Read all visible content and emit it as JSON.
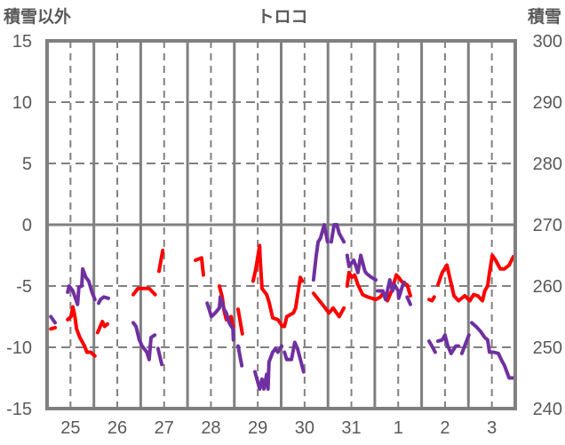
{
  "chart_data": {
    "type": "line",
    "title": "トロコ",
    "ylabel_left": "積雪以外",
    "ylabel_right": "積雪",
    "xlabel": "",
    "x_unit": "days from start of 25th",
    "xlim": [
      0,
      10
    ],
    "categories": [
      "25",
      "26",
      "27",
      "28",
      "29",
      "30",
      "31",
      "1",
      "2",
      "3"
    ],
    "ylim_left": [
      -15,
      15
    ],
    "yticks_left": [
      15,
      10,
      5,
      0,
      -5,
      -10,
      -15
    ],
    "ylim_right": [
      240,
      300
    ],
    "yticks_right": [
      300,
      290,
      280,
      270,
      260,
      250,
      240
    ],
    "grid": true,
    "legend": "none",
    "colors": {
      "other": "#FF0000",
      "snow": "#7030A0",
      "grid": "#808080",
      "text": "#595959"
    },
    "series": [
      {
        "name": "積雪以外",
        "axis": "left",
        "color": "#FF0000",
        "segments": [
          [
            [
              0.08,
              -8.5
            ],
            [
              0.17,
              -8.4
            ]
          ],
          [
            [
              0.44,
              -7.75
            ],
            [
              0.51,
              -7.5
            ],
            [
              0.55,
              -6.7
            ],
            [
              0.59,
              -7.4
            ],
            [
              0.63,
              -8.5
            ],
            [
              0.7,
              -9.2
            ],
            [
              0.8,
              -9.9
            ],
            [
              0.85,
              -10.4
            ],
            [
              0.93,
              -10.4
            ],
            [
              1.02,
              -10.7
            ]
          ],
          [
            [
              1.08,
              -8.8
            ],
            [
              1.18,
              -7.9
            ],
            [
              1.23,
              -8.3
            ],
            [
              1.29,
              -8.1
            ]
          ],
          [
            [
              1.84,
              -5.7
            ],
            [
              1.94,
              -5.2
            ],
            [
              2.09,
              -5.2
            ],
            [
              2.18,
              -5.2
            ],
            [
              2.31,
              -5.7
            ]
          ],
          [
            [
              2.39,
              -3.8
            ],
            [
              2.47,
              -2.1
            ]
          ],
          [
            [
              3.17,
              -2.9
            ],
            [
              3.3,
              -2.7
            ],
            [
              3.34,
              -4.1
            ]
          ],
          [
            [
              3.68,
              -5.0
            ],
            [
              3.74,
              -5.9
            ],
            [
              3.78,
              -7.0
            ],
            [
              3.83,
              -7.75
            ],
            [
              3.93,
              -7.5
            ],
            [
              3.97,
              -8.3
            ],
            [
              3.98,
              -8.3
            ]
          ],
          [
            [
              4.08,
              -6.9
            ],
            [
              4.17,
              -8.9
            ]
          ],
          [
            [
              4.4,
              -4.6
            ],
            [
              4.46,
              -3.6
            ],
            [
              4.54,
              -1.7
            ],
            [
              4.55,
              -2.7
            ],
            [
              4.59,
              -5.2
            ],
            [
              4.69,
              -5.7
            ],
            [
              4.74,
              -6.3
            ],
            [
              4.82,
              -7.6
            ],
            [
              4.93,
              -7.75
            ],
            [
              5.03,
              -8.3
            ],
            [
              5.07,
              -8.3
            ],
            [
              5.12,
              -7.5
            ],
            [
              5.26,
              -7.2
            ],
            [
              5.31,
              -6.8
            ],
            [
              5.41,
              -4.3
            ],
            [
              5.45,
              -4.6
            ]
          ],
          [
            [
              5.69,
              -5.6
            ],
            [
              5.88,
              -6.5
            ],
            [
              6.02,
              -7.2
            ],
            [
              6.11,
              -6.8
            ],
            [
              6.24,
              -7.5
            ],
            [
              6.34,
              -6.8
            ]
          ],
          [
            [
              6.41,
              -5.0
            ],
            [
              6.45,
              -3.9
            ],
            [
              6.51,
              -4.3
            ],
            [
              6.57,
              -4.1
            ],
            [
              6.64,
              -4.9
            ],
            [
              6.74,
              -5.7
            ],
            [
              6.85,
              -5.9
            ],
            [
              7.02,
              -6.1
            ],
            [
              7.12,
              -5.9
            ],
            [
              7.17,
              -5.6
            ],
            [
              7.27,
              -6.2
            ],
            [
              7.36,
              -5.4
            ],
            [
              7.46,
              -4.1
            ],
            [
              7.51,
              -4.3
            ],
            [
              7.59,
              -4.7
            ],
            [
              7.69,
              -4.9
            ],
            [
              7.76,
              -5.8
            ]
          ],
          [
            [
              8.16,
              -6.1
            ],
            [
              8.22,
              -6.2
            ],
            [
              8.27,
              -5.9
            ]
          ],
          [
            [
              8.35,
              -4.9
            ],
            [
              8.44,
              -3.9
            ],
            [
              8.54,
              -3.3
            ],
            [
              8.6,
              -4.3
            ],
            [
              8.69,
              -5.8
            ],
            [
              8.79,
              -6.2
            ],
            [
              8.92,
              -5.8
            ],
            [
              9.03,
              -6.2
            ],
            [
              9.11,
              -5.7
            ],
            [
              9.2,
              -5.8
            ],
            [
              9.3,
              -6.2
            ],
            [
              9.35,
              -5.4
            ],
            [
              9.41,
              -5.0
            ],
            [
              9.45,
              -3.9
            ],
            [
              9.51,
              -2.5
            ],
            [
              9.58,
              -2.9
            ],
            [
              9.68,
              -3.6
            ],
            [
              9.77,
              -3.6
            ],
            [
              9.87,
              -3.3
            ],
            [
              9.96,
              -2.6
            ]
          ]
        ]
      },
      {
        "name": "積雪",
        "axis": "right",
        "color": "#7030A0",
        "segments": [
          [
            [
              0.08,
              255
            ],
            [
              0.17,
              254
            ]
          ],
          [
            [
              0.44,
              259
            ],
            [
              0.47,
              260
            ],
            [
              0.55,
              259.2
            ],
            [
              0.65,
              257
            ],
            [
              0.68,
              259.8
            ],
            [
              0.74,
              260
            ],
            [
              0.76,
              262.8
            ],
            [
              0.83,
              261.4
            ],
            [
              0.89,
              260.8
            ],
            [
              0.95,
              259.2
            ],
            [
              1.02,
              257.8
            ]
          ],
          [
            [
              1.1,
              257.2
            ],
            [
              1.14,
              257.8
            ],
            [
              1.21,
              258.2
            ],
            [
              1.31,
              258
            ]
          ],
          [
            [
              1.84,
              254
            ],
            [
              1.9,
              253.4
            ],
            [
              1.97,
              251.2
            ],
            [
              2.03,
              250.2
            ],
            [
              2.13,
              249.2
            ],
            [
              2.18,
              248
            ],
            [
              2.22,
              251.6
            ],
            [
              2.3,
              252
            ]
          ],
          [
            [
              2.37,
              249.8
            ],
            [
              2.45,
              247.2
            ]
          ],
          [
            [
              3.42,
              257.2
            ],
            [
              3.51,
              255
            ],
            [
              3.59,
              255.6
            ],
            [
              3.68,
              256.4
            ],
            [
              3.7,
              258.2
            ],
            [
              3.78,
              256.2
            ],
            [
              3.83,
              255.6
            ],
            [
              3.89,
              254
            ],
            [
              3.97,
              253
            ],
            [
              3.98,
              251.2
            ]
          ],
          [
            [
              4.08,
              250.2
            ],
            [
              4.16,
              247
            ]
          ],
          [
            [
              4.44,
              246
            ],
            [
              4.54,
              243.2
            ],
            [
              4.59,
              244.8
            ],
            [
              4.63,
              243.2
            ],
            [
              4.69,
              245.6
            ],
            [
              4.72,
              243.2
            ],
            [
              4.74,
              247.6
            ],
            [
              4.82,
              249.2
            ],
            [
              4.88,
              249.8
            ],
            [
              4.93,
              249.2
            ],
            [
              5.01,
              250.2
            ]
          ],
          [
            [
              5.07,
              249.2
            ],
            [
              5.12,
              248
            ],
            [
              5.22,
              248
            ],
            [
              5.29,
              250.8
            ],
            [
              5.35,
              249.8
            ],
            [
              5.48,
              246
            ]
          ],
          [
            [
              5.69,
              261
            ],
            [
              5.75,
              265
            ],
            [
              5.79,
              267.2
            ],
            [
              5.84,
              267.8
            ],
            [
              5.92,
              270
            ],
            [
              5.99,
              267.2
            ]
          ],
          [
            [
              6.07,
              267.2
            ],
            [
              6.13,
              270
            ],
            [
              6.19,
              270
            ],
            [
              6.24,
              268.6
            ],
            [
              6.34,
              267.2
            ]
          ],
          [
            [
              6.41,
              265
            ],
            [
              6.45,
              263.2
            ],
            [
              6.55,
              264.2
            ],
            [
              6.6,
              263.2
            ],
            [
              6.64,
              262.2
            ],
            [
              6.7,
              265
            ],
            [
              6.79,
              262.4
            ],
            [
              6.83,
              262
            ],
            [
              6.93,
              261.4
            ],
            [
              7.02,
              261
            ]
          ],
          [
            [
              7.06,
              259.2
            ],
            [
              7.17,
              259.2
            ],
            [
              7.23,
              257.8
            ],
            [
              7.32,
              261
            ],
            [
              7.38,
              259.2
            ],
            [
              7.42,
              260.2
            ],
            [
              7.5,
              259.2
            ],
            [
              7.51,
              258
            ],
            [
              7.59,
              260
            ],
            [
              7.63,
              260.6
            ]
          ],
          [
            [
              7.69,
              258.2
            ],
            [
              7.76,
              257
            ]
          ],
          [
            [
              8.16,
              251
            ],
            [
              8.22,
              250.2
            ],
            [
              8.29,
              249.2
            ]
          ],
          [
            [
              8.35,
              251
            ],
            [
              8.44,
              251.2
            ],
            [
              8.5,
              252
            ],
            [
              8.56,
              250.2
            ],
            [
              8.63,
              249
            ],
            [
              8.73,
              250.2
            ],
            [
              8.79,
              250.2
            ]
          ],
          [
            [
              8.86,
              249
            ],
            [
              9.01,
              252
            ]
          ],
          [
            [
              9.07,
              254
            ],
            [
              9.16,
              253.4
            ],
            [
              9.26,
              252.6
            ],
            [
              9.35,
              251.6
            ],
            [
              9.41,
              251.2
            ],
            [
              9.45,
              249.2
            ],
            [
              9.54,
              249.2
            ],
            [
              9.64,
              249
            ],
            [
              9.7,
              248
            ],
            [
              9.77,
              247
            ],
            [
              9.87,
              245
            ],
            [
              9.96,
              245
            ]
          ]
        ]
      }
    ]
  }
}
